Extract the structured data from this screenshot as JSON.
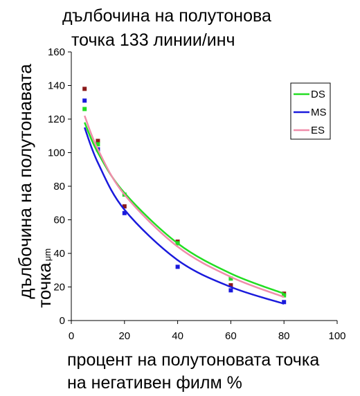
{
  "chart_data": {
    "type": "scatter",
    "title_lines": [
      "дълбочина на полутонова",
      "точка 133 линии/инч"
    ],
    "ylabel_lines": [
      "дълбочина на полутонавата",
      "точка"
    ],
    "yunit": "μm",
    "xlabel_lines": [
      "процент на полутоновата точка",
      "на негативен филм %"
    ],
    "xlim": [
      0,
      100
    ],
    "ylim": [
      0,
      160
    ],
    "xticks": [
      0,
      20,
      40,
      60,
      80,
      100
    ],
    "yticks": [
      0,
      20,
      40,
      60,
      80,
      100,
      120,
      140,
      160
    ],
    "legend_position": "top-right",
    "grid": false,
    "series": [
      {
        "name": "DS",
        "color": "#22dd22",
        "points": [
          [
            5,
            126
          ],
          [
            10,
            105
          ],
          [
            20,
            75
          ],
          [
            40,
            46
          ],
          [
            60,
            25
          ],
          [
            80,
            15
          ]
        ],
        "fit": [
          [
            5,
            118
          ],
          [
            10,
            100
          ],
          [
            20,
            76
          ],
          [
            40,
            46
          ],
          [
            60,
            28
          ],
          [
            80,
            16
          ]
        ]
      },
      {
        "name": "MS",
        "color": "#1a1adc",
        "points": [
          [
            5,
            131
          ],
          [
            10,
            102
          ],
          [
            20,
            64
          ],
          [
            40,
            32
          ],
          [
            60,
            18
          ],
          [
            80,
            11
          ]
        ],
        "fit": [
          [
            5,
            115
          ],
          [
            10,
            94
          ],
          [
            20,
            66
          ],
          [
            40,
            36
          ],
          [
            60,
            20
          ],
          [
            80,
            10
          ]
        ]
      },
      {
        "name": "ES",
        "color": "#f08caa",
        "points": [
          [
            5,
            139
          ],
          [
            10,
            107
          ],
          [
            20,
            68
          ],
          [
            40,
            47
          ],
          [
            60,
            21
          ],
          [
            80,
            16
          ]
        ],
        "fit": [
          [
            5,
            122
          ],
          [
            10,
            102
          ],
          [
            20,
            75
          ],
          [
            40,
            44
          ],
          [
            60,
            26
          ],
          [
            80,
            14
          ]
        ]
      }
    ],
    "outlier_marks": [
      {
        "color": "#8b1a1a",
        "points": [
          [
            5,
            138
          ],
          [
            10,
            107
          ],
          [
            20,
            68
          ],
          [
            40,
            47
          ],
          [
            60,
            21
          ],
          [
            80,
            16
          ]
        ]
      }
    ]
  }
}
